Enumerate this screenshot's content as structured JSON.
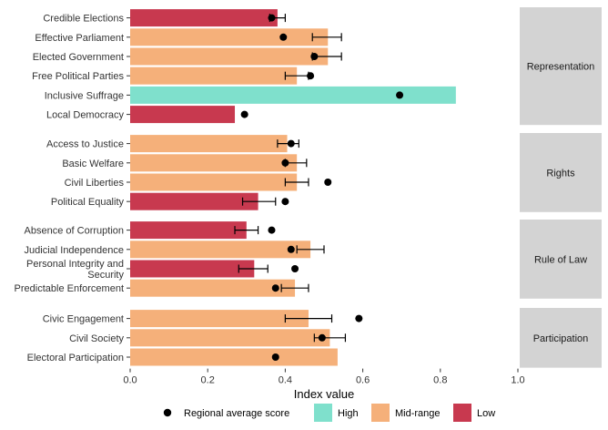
{
  "chart_data": {
    "type": "bar",
    "orientation": "horizontal",
    "xlabel": "Index value",
    "xlim": [
      0,
      1
    ],
    "xticks": [
      "0.0",
      "0.2",
      "0.4",
      "0.6",
      "0.8",
      "1.0"
    ],
    "tick_values": [
      0,
      0.2,
      0.4,
      0.6,
      0.8,
      1.0
    ],
    "colors": {
      "High": "#7fe0cc",
      "Mid-range": "#f5b07a",
      "Low": "#c8394f",
      "point": "#000000",
      "strip": "#d3d3d3"
    },
    "legend": {
      "point_label": "Regional average score",
      "categories": [
        "High",
        "Mid-range",
        "Low"
      ]
    },
    "panels": [
      {
        "name": "Representation",
        "rows": [
          {
            "label": "Credible Elections",
            "value": 0.38,
            "level": "Low",
            "err_low": 0.36,
            "err_high": 0.4,
            "regional_avg": 0.365
          },
          {
            "label": "Effective Parliament",
            "value": 0.51,
            "level": "Mid-range",
            "err_low": 0.47,
            "err_high": 0.545,
            "regional_avg": 0.395
          },
          {
            "label": "Elected Government",
            "value": 0.51,
            "level": "Mid-range",
            "err_low": 0.47,
            "err_high": 0.545,
            "regional_avg": 0.475
          },
          {
            "label": "Free Political Parties",
            "value": 0.43,
            "level": "Mid-range",
            "err_low": 0.4,
            "err_high": 0.46,
            "regional_avg": 0.465
          },
          {
            "label": "Inclusive Suffrage",
            "value": 0.84,
            "level": "High",
            "err_low": null,
            "err_high": null,
            "regional_avg": 0.695
          },
          {
            "label": "Local Democracy",
            "value": 0.27,
            "level": "Low",
            "err_low": null,
            "err_high": null,
            "regional_avg": 0.295
          }
        ]
      },
      {
        "name": "Rights",
        "rows": [
          {
            "label": "Access to Justice",
            "value": 0.405,
            "level": "Mid-range",
            "err_low": 0.38,
            "err_high": 0.435,
            "regional_avg": 0.415
          },
          {
            "label": "Basic Welfare",
            "value": 0.43,
            "level": "Mid-range",
            "err_low": 0.4,
            "err_high": 0.455,
            "regional_avg": 0.4
          },
          {
            "label": "Civil Liberties",
            "value": 0.43,
            "level": "Mid-range",
            "err_low": 0.4,
            "err_high": 0.46,
            "regional_avg": 0.51
          },
          {
            "label": "Political Equality",
            "value": 0.33,
            "level": "Low",
            "err_low": 0.29,
            "err_high": 0.375,
            "regional_avg": 0.4
          }
        ]
      },
      {
        "name": "Rule of Law",
        "rows": [
          {
            "label": "Absence of Corruption",
            "value": 0.3,
            "level": "Low",
            "err_low": 0.27,
            "err_high": 0.33,
            "regional_avg": 0.365
          },
          {
            "label": "Judicial Independence",
            "value": 0.465,
            "level": "Mid-range",
            "err_low": 0.43,
            "err_high": 0.5,
            "regional_avg": 0.415
          },
          {
            "label": [
              "Personal Integrity and",
              "Security"
            ],
            "value": 0.32,
            "level": "Low",
            "err_low": 0.28,
            "err_high": 0.355,
            "regional_avg": 0.425
          },
          {
            "label": "Predictable Enforcement",
            "value": 0.425,
            "level": "Mid-range",
            "err_low": 0.39,
            "err_high": 0.46,
            "regional_avg": 0.375
          }
        ]
      },
      {
        "name": "Participation",
        "rows": [
          {
            "label": "Civic Engagement",
            "value": 0.46,
            "level": "Mid-range",
            "err_low": 0.4,
            "err_high": 0.52,
            "regional_avg": 0.59
          },
          {
            "label": "Civil Society",
            "value": 0.515,
            "level": "Mid-range",
            "err_low": 0.475,
            "err_high": 0.555,
            "regional_avg": 0.495
          },
          {
            "label": "Electoral Participation",
            "value": 0.535,
            "level": "Mid-range",
            "err_low": null,
            "err_high": null,
            "regional_avg": 0.375
          }
        ]
      }
    ]
  }
}
